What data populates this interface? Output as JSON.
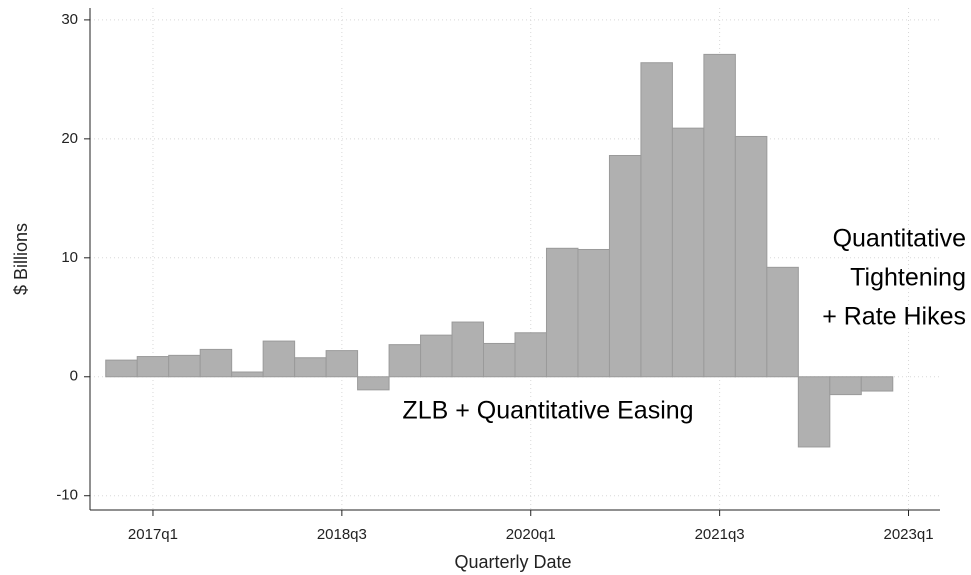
{
  "chart_data": {
    "type": "bar",
    "x": [
      "2016q4",
      "2017q1",
      "2017q2",
      "2017q3",
      "2017q4",
      "2018q1",
      "2018q2",
      "2018q3",
      "2018q4",
      "2019q1",
      "2019q2",
      "2019q3",
      "2019q4",
      "2020q1",
      "2020q2",
      "2020q3",
      "2020q4",
      "2021q1",
      "2021q2",
      "2021q3",
      "2021q4",
      "2022q1",
      "2022q2",
      "2022q3",
      "2022q4"
    ],
    "values": [
      1.4,
      1.7,
      1.8,
      2.3,
      0.4,
      3.0,
      1.6,
      2.2,
      -1.1,
      2.7,
      3.5,
      4.6,
      2.8,
      3.7,
      10.8,
      10.7,
      18.6,
      26.4,
      20.9,
      27.1,
      20.2,
      9.2,
      -5.9,
      -1.5,
      -1.2
    ],
    "color": "#b0b0b0",
    "xlabel": "Quarterly Date",
    "ylabel": "$ Billions",
    "xlim": [
      "2016q3",
      "2023q2"
    ],
    "xticks": [
      "2017q1",
      "2018q3",
      "2020q1",
      "2021q3",
      "2023q1"
    ],
    "ylim": [
      -11.2,
      31
    ],
    "yticks": [
      -10,
      0,
      10,
      20,
      30
    ],
    "grid": true,
    "annotations": [
      {
        "lines": [
          "ZLB + Quantitative Easing"
        ]
      },
      {
        "lines": [
          "Quantitative",
          "Tightening",
          "+ Rate Hikes"
        ]
      }
    ]
  }
}
